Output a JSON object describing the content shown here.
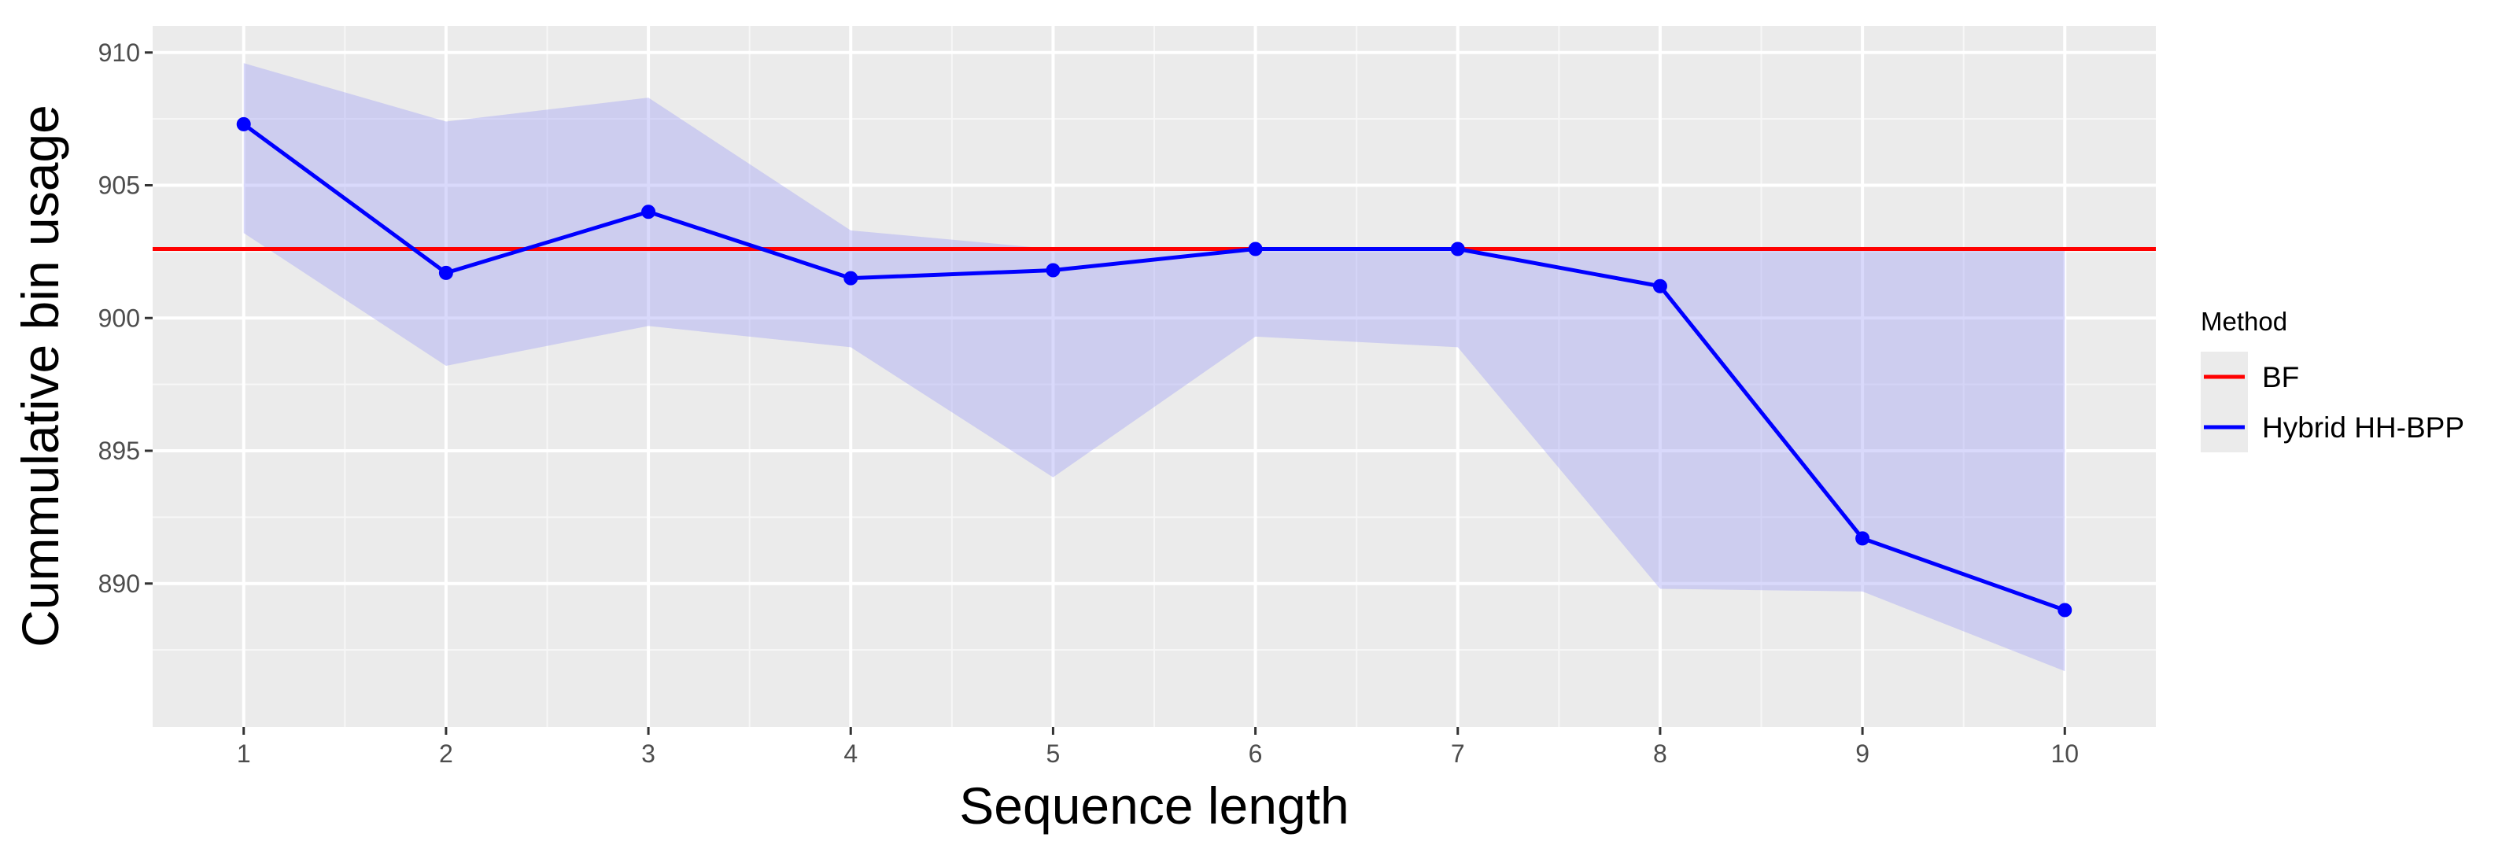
{
  "chart_data": {
    "type": "line",
    "xlabel": "Sequence length",
    "ylabel": "Cummulative bin usage",
    "x": [
      1,
      2,
      3,
      4,
      5,
      6,
      7,
      8,
      9,
      10
    ],
    "xlim": [
      0.55,
      10.45
    ],
    "ylim": [
      884.6,
      911.0
    ],
    "y_ticks": [
      890,
      895,
      900,
      905,
      910
    ],
    "x_ticks": [
      1,
      2,
      3,
      4,
      5,
      6,
      7,
      8,
      9,
      10
    ],
    "grid": true,
    "legend": {
      "title": "Method",
      "position": "right"
    },
    "series": [
      {
        "name": "BF",
        "kind": "hline",
        "y": 902.6,
        "color": "#ff0000"
      },
      {
        "name": "Hybrid HH-BPP",
        "kind": "line-points",
        "values": [
          907.3,
          901.7,
          904.0,
          901.5,
          901.8,
          902.6,
          902.6,
          901.2,
          891.7,
          889.0
        ],
        "color": "#0000ff",
        "band": {
          "lower": [
            903.2,
            898.2,
            899.7,
            898.9,
            894.0,
            899.3,
            898.9,
            889.8,
            889.7,
            886.7
          ],
          "upper": [
            909.6,
            907.4,
            908.3,
            903.3,
            902.6,
            902.6,
            902.6,
            902.6,
            902.6,
            902.6
          ],
          "color": "#a5a5f5"
        }
      }
    ]
  }
}
